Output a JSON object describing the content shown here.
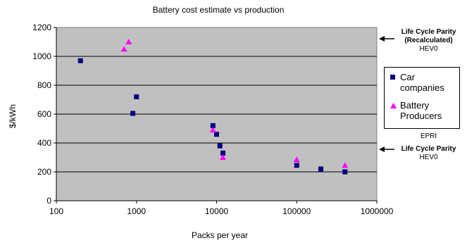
{
  "chart_data": {
    "type": "scatter",
    "title": "Battery cost estimate vs production",
    "xlabel": "Packs per year",
    "ylabel": "$/kWh",
    "xscale": "log",
    "xlim": [
      100,
      1000000
    ],
    "ylim": [
      0,
      1200
    ],
    "xticks": [
      100,
      1000,
      10000,
      100000,
      1000000
    ],
    "xtick_labels": [
      "100",
      "1000",
      "10000",
      "100000",
      "1000000"
    ],
    "yticks": [
      0,
      200,
      400,
      600,
      800,
      1000,
      1200
    ],
    "ytick_labels": [
      "0",
      "200",
      "400",
      "600",
      "800",
      "1000",
      "1200"
    ],
    "grid": "horizontal",
    "legend_position": "right",
    "background": "#c0c0c0",
    "series": [
      {
        "name": "Car companies",
        "marker": "square",
        "color": "#000080",
        "points": [
          {
            "x": 200,
            "y": 970
          },
          {
            "x": 900,
            "y": 605
          },
          {
            "x": 1000,
            "y": 720
          },
          {
            "x": 9000,
            "y": 520
          },
          {
            "x": 10000,
            "y": 460
          },
          {
            "x": 11000,
            "y": 380
          },
          {
            "x": 12000,
            "y": 330
          },
          {
            "x": 100000,
            "y": 245
          },
          {
            "x": 200000,
            "y": 220
          },
          {
            "x": 400000,
            "y": 200
          }
        ]
      },
      {
        "name": "Battery Producers",
        "marker": "triangle",
        "color": "#ff00ff",
        "points": [
          {
            "x": 700,
            "y": 1050
          },
          {
            "x": 800,
            "y": 1100
          },
          {
            "x": 9000,
            "y": 490
          },
          {
            "x": 12000,
            "y": 300
          },
          {
            "x": 100000,
            "y": 285
          },
          {
            "x": 400000,
            "y": 245
          }
        ]
      }
    ],
    "legend": {
      "car_line1": "Car",
      "car_line2": "companies",
      "bat_line1": "Battery",
      "bat_line2": "Producers"
    },
    "annotations": {
      "top_line1": "Life Cycle Parity",
      "top_line2": "(Recalculated)",
      "top_line3": "HEV0",
      "epri": "EPRI",
      "bottom_line1": "Life Cycle Parity",
      "bottom_line2": "HEV0"
    }
  }
}
